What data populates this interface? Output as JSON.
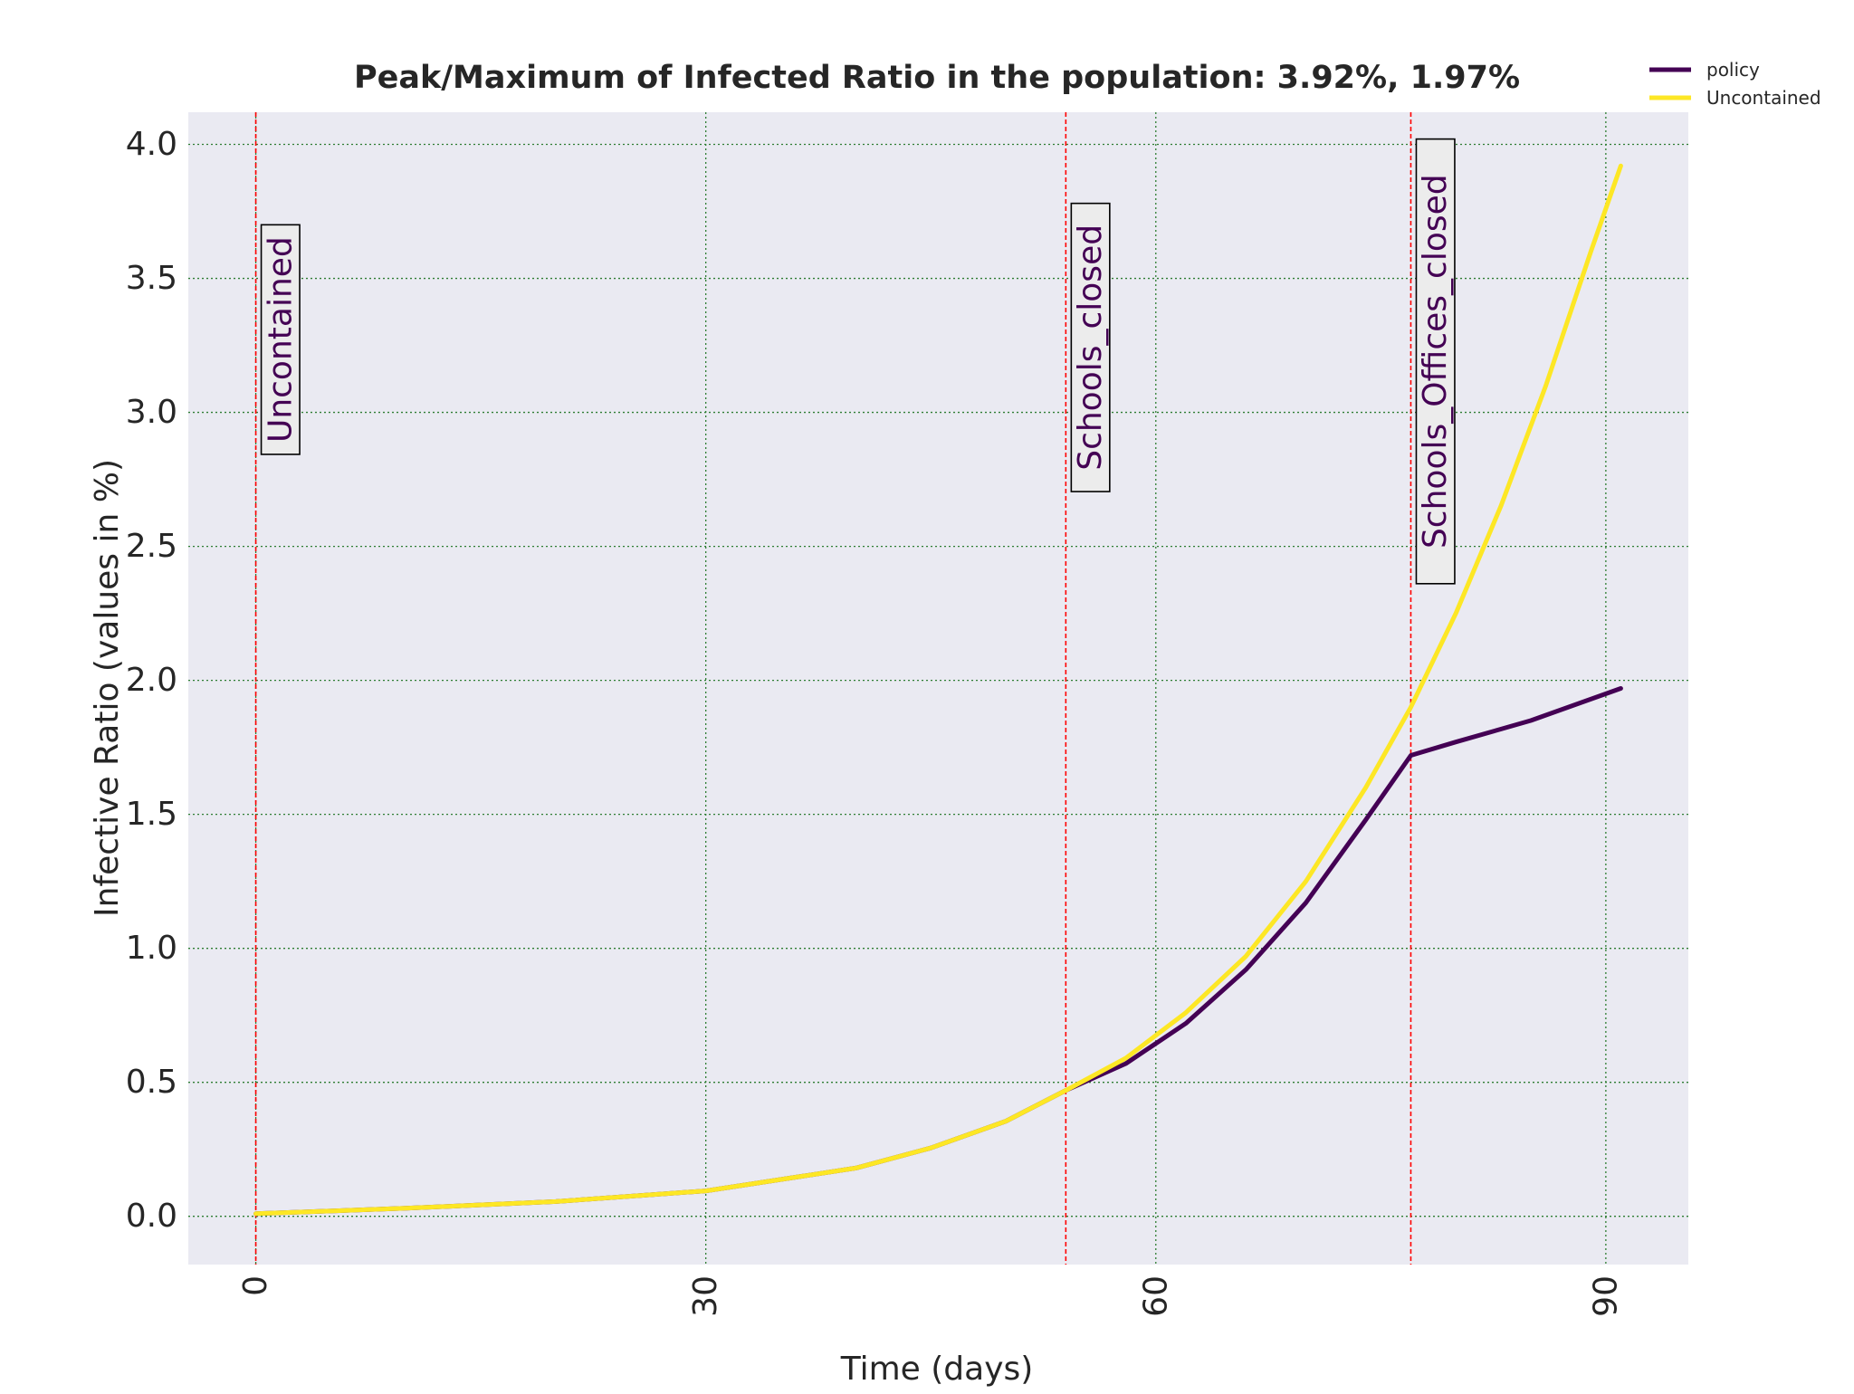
{
  "chart_data": {
    "type": "line",
    "title": "Peak/Maximum of Infected Ratio in the population: 3.92%, 1.97%",
    "xlabel": "Time (days)",
    "ylabel": "Infective Ratio (values in %)",
    "xlim": [
      -4.5,
      95.5
    ],
    "ylim": [
      -0.18,
      4.12
    ],
    "x_ticks": [
      0,
      30,
      60,
      90
    ],
    "y_ticks": [
      0.0,
      0.5,
      1.0,
      1.5,
      2.0,
      2.5,
      3.0,
      3.5,
      4.0
    ],
    "grid": true,
    "legend_position": "top-right",
    "colors": {
      "background": "#eaeaf2",
      "grid": "#2e7d32",
      "policy": "#440154",
      "uncontained": "#fde725",
      "vline": "#ff0000",
      "annotation_text": "#440154"
    },
    "series": [
      {
        "name": "policy",
        "color": "#440154",
        "x": [
          0,
          10,
          20,
          30,
          40,
          45,
          50,
          54,
          58,
          62,
          66,
          70,
          74,
          77,
          80,
          85,
          91
        ],
        "y": [
          0.01,
          0.03,
          0.055,
          0.095,
          0.18,
          0.255,
          0.355,
          0.47,
          0.57,
          0.72,
          0.92,
          1.17,
          1.48,
          1.72,
          1.77,
          1.85,
          1.97
        ]
      },
      {
        "name": "Uncontained",
        "color": "#fde725",
        "x": [
          0,
          10,
          20,
          30,
          40,
          45,
          50,
          54,
          58,
          62,
          66,
          70,
          74,
          77,
          80,
          83,
          86,
          89,
          91
        ],
        "y": [
          0.01,
          0.03,
          0.055,
          0.095,
          0.18,
          0.255,
          0.355,
          0.47,
          0.59,
          0.76,
          0.97,
          1.25,
          1.6,
          1.9,
          2.25,
          2.65,
          3.1,
          3.6,
          3.92
        ]
      }
    ],
    "policy_changes": [
      {
        "x": 0,
        "label": "Uncontained",
        "label_top_y": 3.7
      },
      {
        "x": 54,
        "label": "Schools_closed",
        "label_top_y": 3.78
      },
      {
        "x": 77,
        "label": "Schools_Offices_closed",
        "label_top_y": 4.02
      }
    ]
  }
}
